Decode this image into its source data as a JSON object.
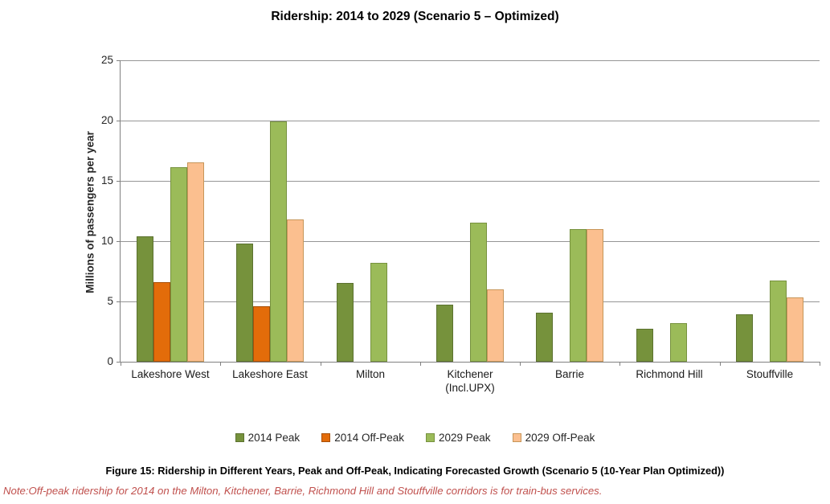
{
  "page": {
    "title": "Ridership: 2014 to 2029 (Scenario 5 – Optimized)",
    "caption": "Figure 15: Ridership in Different Years, Peak and Off-Peak, Indicating Forecasted Growth (Scenario 5 (10-Year Plan Optimized))",
    "note": "Note:Off-peak ridership for 2014 on the Milton, Kitchener, Barrie, Richmond Hill and Stouffville corridors is for train-bus services.",
    "note_color": "#C0504D"
  },
  "chart_data": {
    "type": "bar",
    "title": "Ridership: 2014 to 2029 (Scenario 5 – Optimized)",
    "xlabel": "",
    "ylabel": "Millions of passengers per year",
    "ylim": [
      0,
      25
    ],
    "yticks": [
      0,
      5,
      10,
      15,
      20,
      25
    ],
    "grid": true,
    "legend_position": "bottom",
    "axis_color": "#808080",
    "grid_color": "#969696",
    "categories": [
      "Lakeshore West",
      "Lakeshore East",
      "Milton",
      "Kitchener (Incl.UPX)",
      "Barrie",
      "Richmond Hill",
      "Stouffville"
    ],
    "category_display": [
      [
        "Lakeshore West"
      ],
      [
        "Lakeshore East"
      ],
      [
        "Milton"
      ],
      [
        "Kitchener",
        "(Incl.UPX)"
      ],
      [
        "Barrie"
      ],
      [
        "Richmond Hill"
      ],
      [
        "Stouffville"
      ]
    ],
    "series": [
      {
        "name": "2014 Peak",
        "color": "#76923C",
        "border_color": "#5C7230",
        "values": [
          10.4,
          9.8,
          6.5,
          4.7,
          4.1,
          2.7,
          3.9
        ]
      },
      {
        "name": "2014 Off-Peak",
        "color": "#E36C0A",
        "border_color": "#A85008",
        "values": [
          6.6,
          4.6,
          0,
          0,
          0,
          0,
          0
        ]
      },
      {
        "name": "2029 Peak",
        "color": "#9BBB59",
        "border_color": "#77923F",
        "values": [
          16.1,
          19.9,
          8.2,
          11.5,
          11.0,
          3.2,
          6.7
        ]
      },
      {
        "name": "2029 Off-Peak",
        "color": "#FBBF8F",
        "border_color": "#C79659",
        "values": [
          16.5,
          11.8,
          0,
          6.0,
          11.0,
          0,
          5.3
        ]
      }
    ]
  }
}
